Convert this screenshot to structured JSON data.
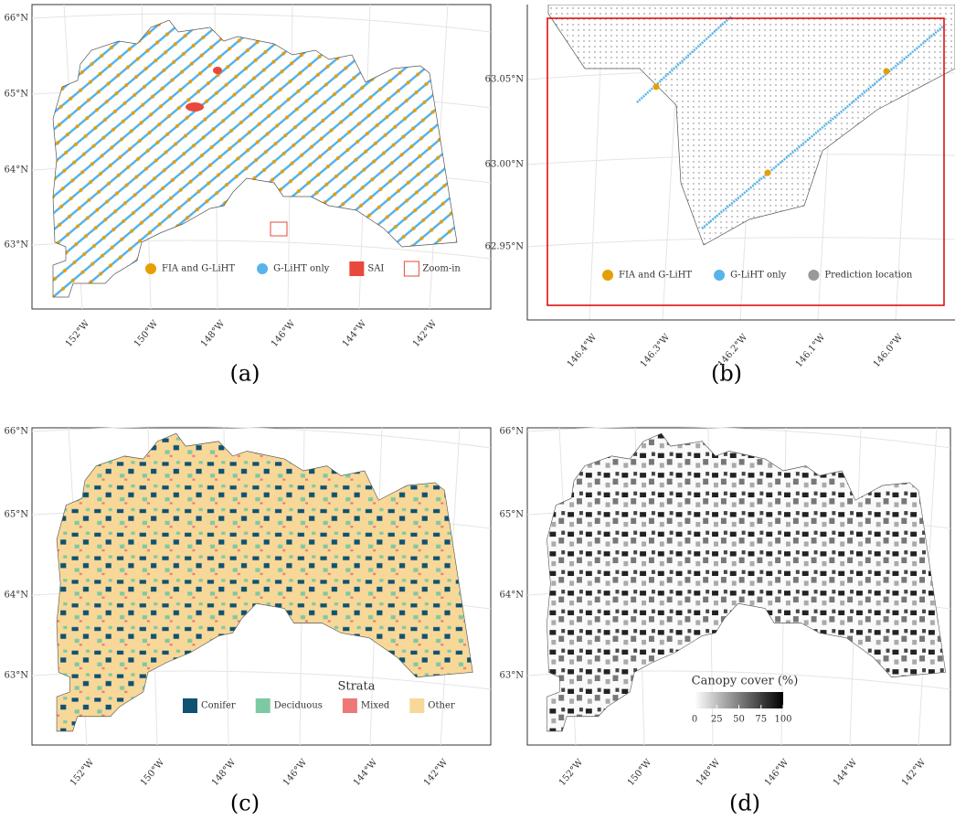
{
  "panels": [
    {
      "caption": "(a)",
      "y_labels": [
        "66°N",
        "65°N",
        "64°N",
        "63°N"
      ],
      "x_labels": [
        "152°W",
        "150°W",
        "148°W",
        "146°W",
        "144°W",
        "142°W"
      ],
      "legend": [
        {
          "label": "FIA and G-LiHT",
          "color": "#e69f00",
          "shape": "circle"
        },
        {
          "label": "G-LiHT only",
          "color": "#56b4e9",
          "shape": "circle"
        },
        {
          "label": "SAI",
          "color": "#e8493c",
          "shape": "square"
        },
        {
          "label": "Zoom-in",
          "color": "#e8493c",
          "shape": "outline"
        }
      ]
    },
    {
      "caption": "(b)",
      "y_labels": [
        "63.05°N",
        "63.00°N",
        "62.95°N"
      ],
      "x_labels": [
        "146.4°W",
        "146.3°W",
        "146.2°W",
        "146.1°W",
        "146.0°W"
      ],
      "legend": [
        {
          "label": "FIA and G-LiHT",
          "color": "#e69f00",
          "shape": "circle"
        },
        {
          "label": "G-LiHT only",
          "color": "#56b4e9",
          "shape": "circle"
        },
        {
          "label": "Prediction location",
          "color": "#999999",
          "shape": "circle"
        }
      ]
    },
    {
      "caption": "(c)",
      "y_labels": [
        "66°N",
        "65°N",
        "64°N",
        "63°N"
      ],
      "x_labels": [
        "152°W",
        "150°W",
        "148°W",
        "146°W",
        "144°W",
        "142°W"
      ],
      "legend_title": "Strata",
      "legend": [
        {
          "label": "Conifer",
          "color": "#0f5272",
          "shape": "square"
        },
        {
          "label": "Deciduous",
          "color": "#7dc9a2",
          "shape": "square"
        },
        {
          "label": "Mixed",
          "color": "#ee7777",
          "shape": "square"
        },
        {
          "label": "Other",
          "color": "#f7d898",
          "shape": "square"
        }
      ]
    },
    {
      "caption": "(d)",
      "y_labels": [
        "66°N",
        "65°N",
        "64°N",
        "63°N"
      ],
      "x_labels": [
        "152°W",
        "150°W",
        "148°W",
        "146°W",
        "144°W",
        "142°W"
      ],
      "colorbar": {
        "title": "Canopy cover (%)",
        "lim": [
          0,
          100
        ],
        "ticks": [
          0,
          25,
          50,
          75,
          100
        ]
      }
    }
  ]
}
